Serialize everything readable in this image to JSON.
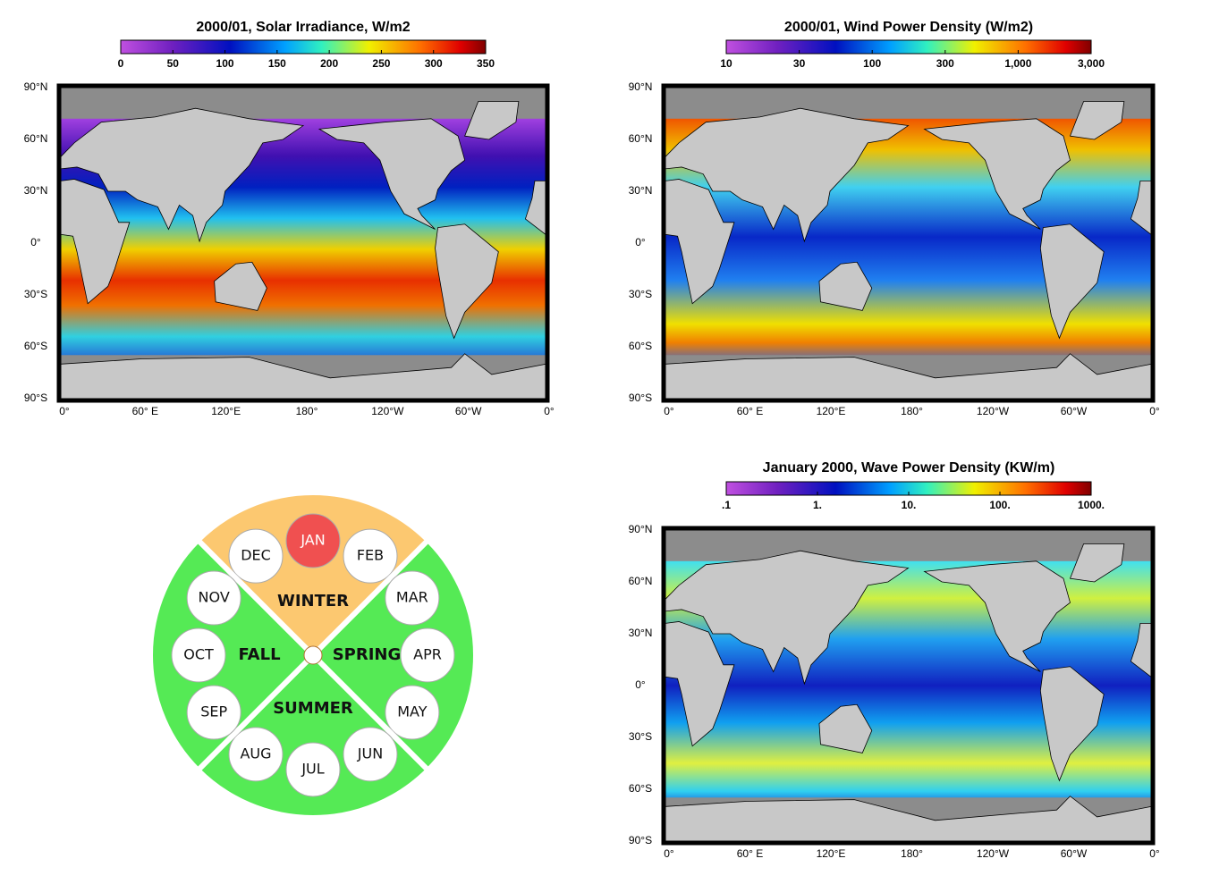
{
  "maps": [
    {
      "title": "2000/01, Solar Irradiance, W/m2",
      "colorbar_ticks": [
        "0",
        "50",
        "100",
        "150",
        "200",
        "250",
        "300",
        "350"
      ]
    },
    {
      "title": "2000/01, Wind Power Density (W/m2)",
      "colorbar_ticks": [
        "10",
        "30",
        "100",
        "300",
        "1,000",
        "3,000"
      ]
    },
    {
      "title": "January 2000, Wave Power Density (KW/m)",
      "colorbar_ticks": [
        ".1",
        "1.",
        "10.",
        "100.",
        "1000."
      ]
    }
  ],
  "lat_labels": [
    "90°N",
    "60°N",
    "30°N",
    "0°",
    "30°S",
    "60°S",
    "90°S"
  ],
  "lon_labels": [
    "0°",
    "60° E",
    "120°E",
    "180°",
    "120°W",
    "60°W",
    "0°"
  ],
  "season_wheel": {
    "seasons": [
      {
        "name": "WINTER",
        "months": [
          "DEC",
          "JAN",
          "FEB"
        ]
      },
      {
        "name": "SPRING",
        "months": [
          "MAR",
          "APR",
          "MAY"
        ]
      },
      {
        "name": "SUMMER",
        "months": [
          "JUN",
          "JUL",
          "AUG"
        ]
      },
      {
        "name": "FALL",
        "months": [
          "SEP",
          "OCT",
          "NOV"
        ]
      }
    ],
    "selected_month": "JAN"
  }
}
